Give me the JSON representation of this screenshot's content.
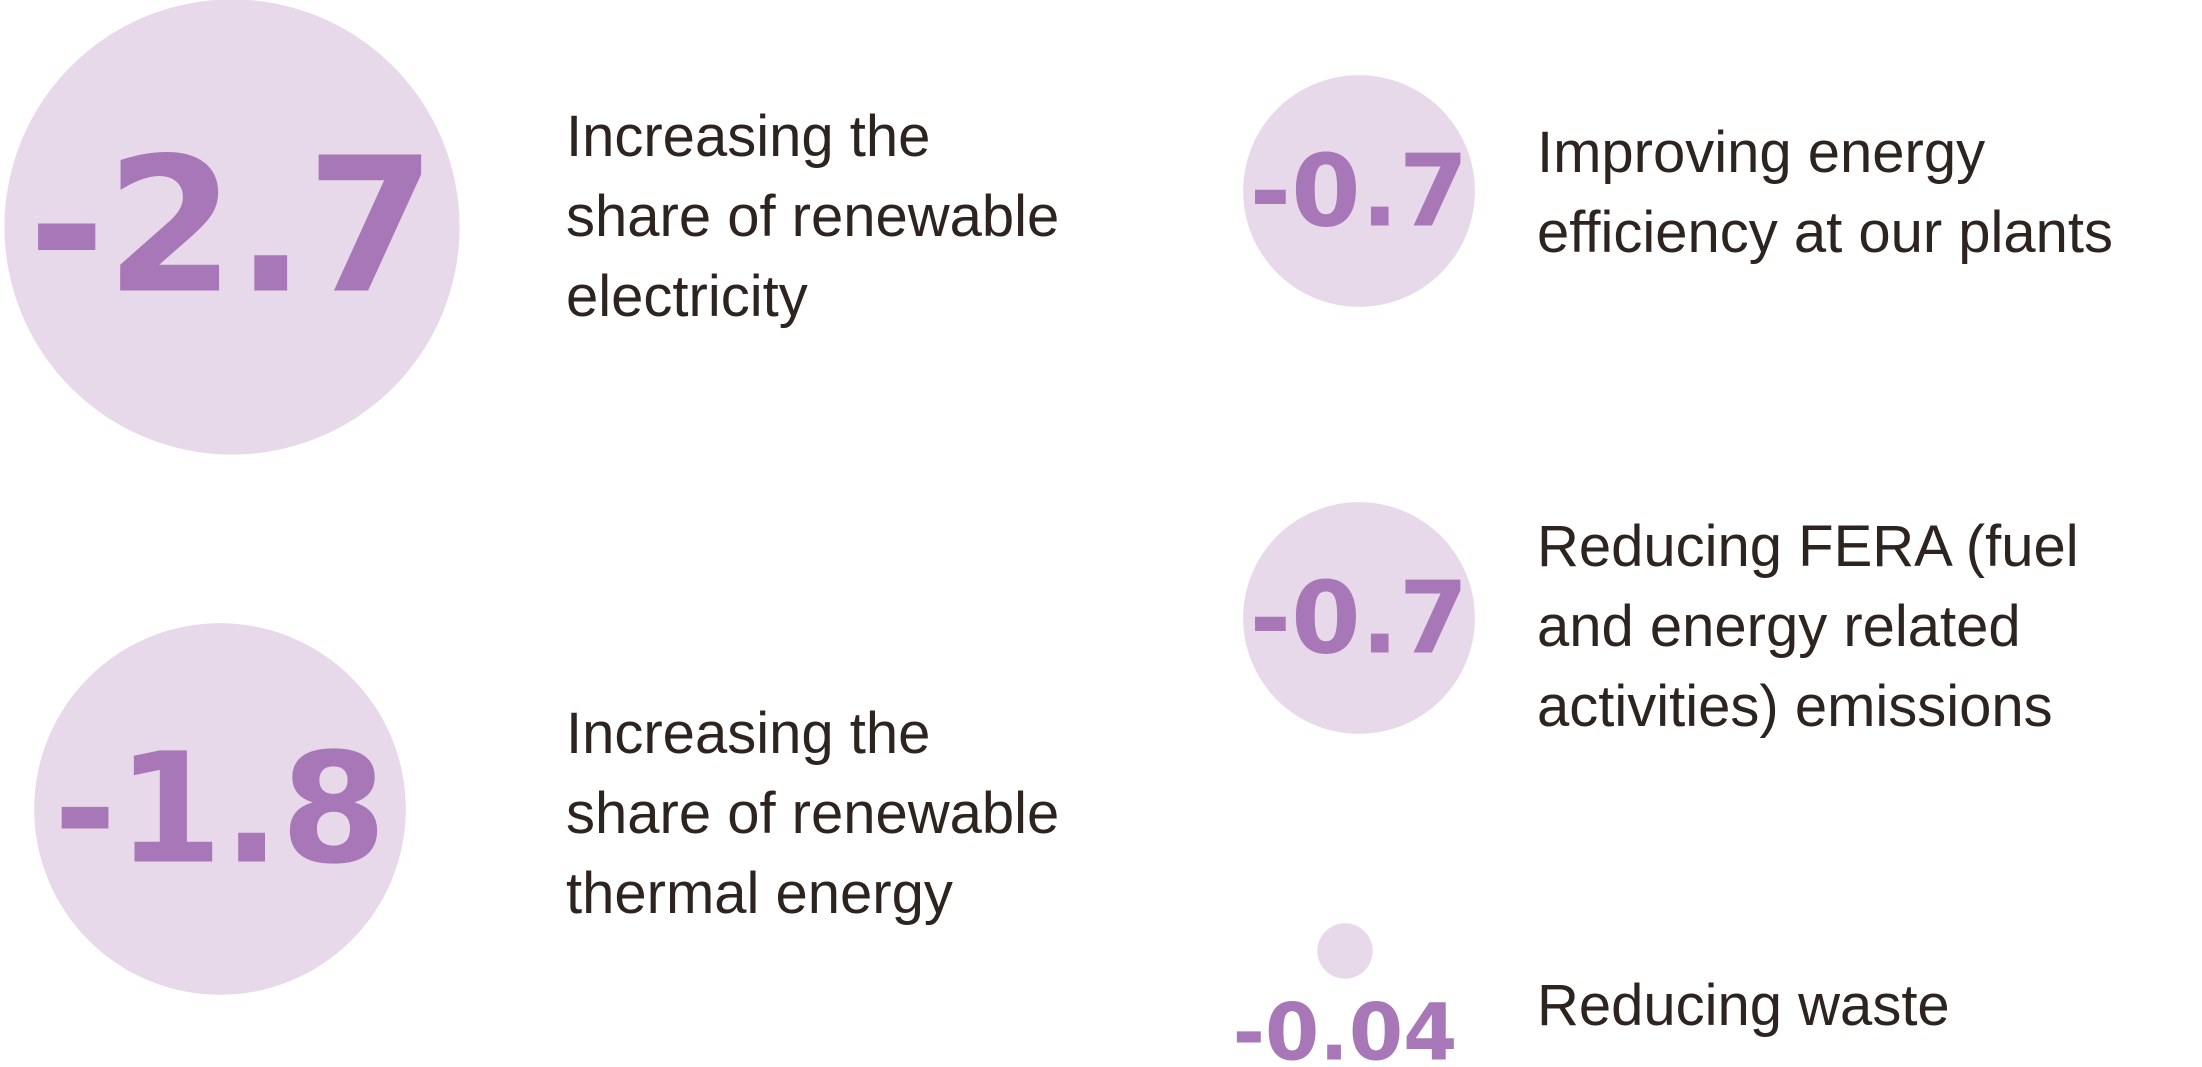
{
  "chart_data": {
    "type": "bubble",
    "color": "#e8d9ea",
    "label_color": "#a877b8",
    "values": [
      -2.7,
      -0.7,
      -1.8,
      -0.7,
      -0.04
    ],
    "labels": [
      [
        "Increasing the",
        "share of renewable",
        "electricity"
      ],
      [
        "Improving energy",
        "efficiency at our plants"
      ],
      [
        "Increasing the",
        "share of renewable",
        "thermal energy"
      ],
      [
        "Reducing FERA (fuel",
        "and energy related",
        "activities) emissions"
      ],
      [
        "Reducing waste"
      ]
    ]
  }
}
